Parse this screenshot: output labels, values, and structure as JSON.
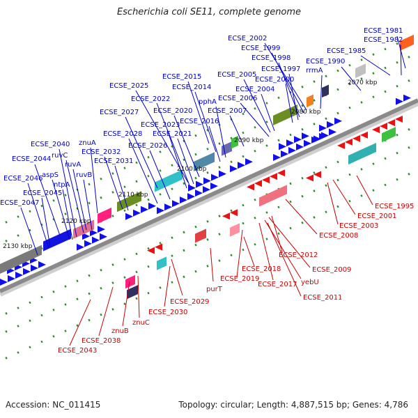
{
  "title": "Escherichia coli SE11, complete genome",
  "footer": {
    "accession": "Accession: NC_011415",
    "summary": "Topology: circular; Length: 4,887,515 bp; Genes: 4,786"
  },
  "colors": {
    "plus_strand": "#1010ee",
    "minus_strand": "#ee1010",
    "leader_plus": "#0000cc",
    "leader_minus": "#cc0000",
    "tick": "#2d8a2d",
    "backbone": "#8a8a8a"
  },
  "kbp_ticks": [
    "2070 kbp",
    "2080 kbp",
    "2090 kbp",
    "2100 kbp",
    "2110 kbp",
    "2120 kbp",
    "2130 kbp"
  ],
  "plus_labels": [
    "ECSE_1981",
    "ECSE_1982",
    "ECSE_1985",
    "ECSE_1990",
    "rrmA",
    "ECSE_2002",
    "ECSE_1999",
    "ECSE_1998",
    "ECSE_1997",
    "ECSE_2000",
    "ECSE_2005",
    "ECSE_2004",
    "ECSE_2006",
    "ECSE_2007",
    "ECSE_2015",
    "ECSE_2014",
    "pphA",
    "ECSE_2016",
    "ECSE_2025",
    "ECSE_2022",
    "ECSE_2020",
    "ECSE_2023",
    "ECSE_2021",
    "ECSE_2027",
    "ECSE_2028",
    "ECSE_2026",
    "znuA",
    "ECSE_2032",
    "ECSE_2031",
    "ECSE_2040",
    "ruvC",
    "ruvA",
    "ruvB",
    "ECSE_2044",
    "aspS",
    "ntpA",
    "ECSE_2046",
    "ECSE_2045",
    "ECSE_2047"
  ],
  "minus_labels": [
    "ECSE_1995",
    "ECSE_2001",
    "ECSE_2003",
    "ECSE_2008",
    "ECSE_2012",
    "ECSE_2009",
    "ECSE_2018",
    "yebU",
    "ECSE_2019",
    "ECSE_2017",
    "ECSE_2011",
    "purT",
    "ECSE_2029",
    "ECSE_2030",
    "znuC",
    "znuB",
    "ECSE_2038",
    "ECSE_2043"
  ]
}
